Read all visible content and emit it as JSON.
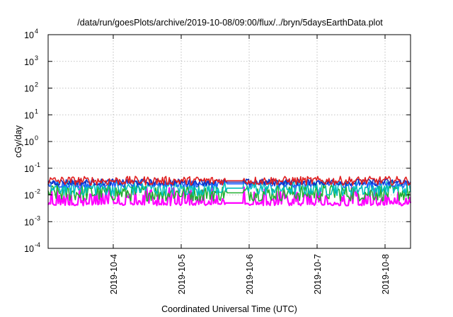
{
  "chart_data": {
    "type": "line",
    "title": "/data/run/goesPlots/archive/2019-10-08/09:00/flux/../bryn/5daysEarthData.plot",
    "xlabel": "Coordinated Universal Time (UTC)",
    "ylabel": "cGy/day",
    "yscale": "log",
    "ylim_exponents": [
      -4,
      4
    ],
    "y_ticks": [
      {
        "base": "10",
        "exp": "-4",
        "value": 0.0001
      },
      {
        "base": "10",
        "exp": "-3",
        "value": 0.001
      },
      {
        "base": "10",
        "exp": "-2",
        "value": 0.01
      },
      {
        "base": "10",
        "exp": "-1",
        "value": 0.1
      },
      {
        "base": "10",
        "exp": "0",
        "value": 1
      },
      {
        "base": "10",
        "exp": "1",
        "value": 10
      },
      {
        "base": "10",
        "exp": "2",
        "value": 100
      },
      {
        "base": "10",
        "exp": "3",
        "value": 1000
      },
      {
        "base": "10",
        "exp": "4",
        "value": 10000
      }
    ],
    "xlim": [
      "2019-10-03T01:00",
      "2019-10-08T09:00"
    ],
    "x_ticks": [
      "2019-10-4",
      "2019-10-5",
      "2019-10-6",
      "2019-10-7",
      "2019-10-8"
    ],
    "x_tick_dates": [
      "2019-10-04",
      "2019-10-05",
      "2019-10-06",
      "2019-10-07",
      "2019-10-08"
    ],
    "grid": true,
    "series": [
      {
        "color": "#ff00ff",
        "approx_range": [
          0.004,
          0.02
        ],
        "typical": 0.005
      },
      {
        "color": "#20b030",
        "approx_range": [
          0.006,
          0.03
        ],
        "typical": 0.012
      },
      {
        "color": "#00bfbf",
        "approx_range": [
          0.008,
          0.035
        ],
        "typical": 0.018
      },
      {
        "color": "#2060ff",
        "approx_range": [
          0.015,
          0.045
        ],
        "typical": 0.026
      },
      {
        "color": "#1030c0",
        "approx_range": [
          0.018,
          0.05
        ],
        "typical": 0.03
      },
      {
        "color": "#e02020",
        "approx_range": [
          0.02,
          0.08
        ],
        "typical": 0.034
      }
    ]
  }
}
